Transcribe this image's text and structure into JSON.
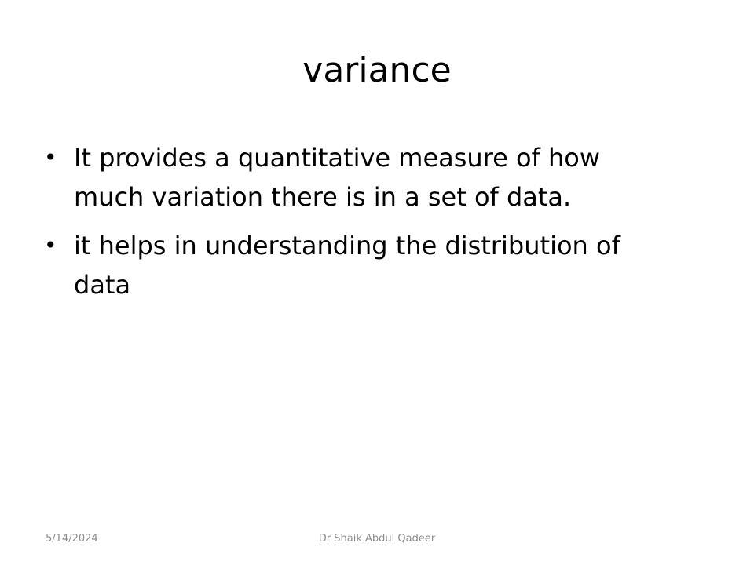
{
  "slide": {
    "title": "variance",
    "bullets": [
      {
        "marker": "•",
        "text": "It provides a quantitative measure of how much variation there is in a set of data."
      },
      {
        "marker": "•",
        "text": "it helps in understanding the distribution of data"
      }
    ],
    "footer": {
      "date": "5/14/2024",
      "author": "Dr Shaik Abdul Qadeer"
    }
  }
}
